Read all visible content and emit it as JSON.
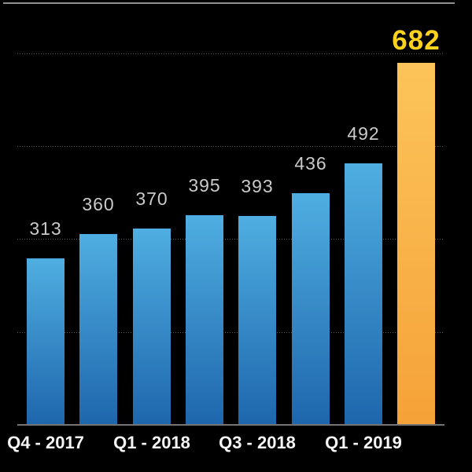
{
  "chart_data": {
    "type": "bar",
    "title": "",
    "xlabel": "",
    "ylabel": "",
    "ylim": [
      0,
      700
    ],
    "grid": "horizontal-dotted",
    "legend": "none",
    "bars": [
      {
        "label": "313",
        "value": 313,
        "highlight": false
      },
      {
        "label": "360",
        "value": 360,
        "highlight": false
      },
      {
        "label": "370",
        "value": 370,
        "highlight": false
      },
      {
        "label": "395",
        "value": 395,
        "highlight": false
      },
      {
        "label": "393",
        "value": 393,
        "highlight": false
      },
      {
        "label": "436",
        "value": 436,
        "highlight": false
      },
      {
        "label": "492",
        "value": 492,
        "highlight": false
      },
      {
        "label": "682",
        "value": 682,
        "highlight": true
      }
    ],
    "x_tick_labels": [
      {
        "text": "Q4 - 2017",
        "bar_index": 0
      },
      {
        "text": "Q1 - 2018",
        "bar_index": 2
      },
      {
        "text": "Q3 - 2018",
        "bar_index": 4
      },
      {
        "text": "Q1 - 2019",
        "bar_index": 6
      }
    ],
    "gridline_values_estimated": [
      175,
      350,
      525,
      700
    ],
    "colors": {
      "background": "#000000",
      "bar_gradient_top": "#4FAEE1",
      "bar_gradient_bottom": "#1E66AC",
      "highlight_gradient_top": "#FCC45A",
      "highlight_gradient_bottom": "#F5A238",
      "value_label": "#CACACA",
      "highlight_value_label": "#FDD21D",
      "tick_label": "#F5F5F5",
      "gridline": "#5E5E5E",
      "baseline": "#747474",
      "top_border": "#8F8F8F"
    }
  }
}
